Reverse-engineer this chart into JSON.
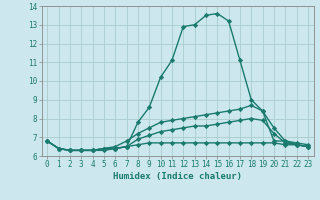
{
  "xlabel": "Humidex (Indice chaleur)",
  "background_color": "#cce8ee",
  "grid_color": "#aacccc",
  "line_color": "#1a7a6e",
  "xlim": [
    -0.5,
    23.5
  ],
  "ylim": [
    6,
    14
  ],
  "xticks": [
    0,
    1,
    2,
    3,
    4,
    5,
    6,
    7,
    8,
    9,
    10,
    11,
    12,
    13,
    14,
    15,
    16,
    17,
    18,
    19,
    20,
    21,
    22,
    23
  ],
  "yticks": [
    6,
    7,
    8,
    9,
    10,
    11,
    12,
    13,
    14
  ],
  "series": [
    [
      6.8,
      6.4,
      6.3,
      6.3,
      6.3,
      6.3,
      6.4,
      6.5,
      7.8,
      8.6,
      10.2,
      11.1,
      12.9,
      13.0,
      13.5,
      13.6,
      13.2,
      11.1,
      9.0,
      8.4,
      6.8,
      6.8,
      6.6,
      6.5
    ],
    [
      6.8,
      6.4,
      6.3,
      6.3,
      6.3,
      6.4,
      6.5,
      6.8,
      7.2,
      7.5,
      7.8,
      7.9,
      8.0,
      8.1,
      8.2,
      8.3,
      8.4,
      8.5,
      8.7,
      8.4,
      7.5,
      6.8,
      6.7,
      6.6
    ],
    [
      6.8,
      6.4,
      6.3,
      6.3,
      6.3,
      6.4,
      6.4,
      6.5,
      6.9,
      7.1,
      7.3,
      7.4,
      7.5,
      7.6,
      7.6,
      7.7,
      7.8,
      7.9,
      8.0,
      7.9,
      7.2,
      6.7,
      6.6,
      6.5
    ],
    [
      6.8,
      6.4,
      6.3,
      6.3,
      6.3,
      6.4,
      6.4,
      6.5,
      6.6,
      6.7,
      6.7,
      6.7,
      6.7,
      6.7,
      6.7,
      6.7,
      6.7,
      6.7,
      6.7,
      6.7,
      6.7,
      6.6,
      6.6,
      6.5
    ]
  ],
  "marker": "D",
  "marker_size": 2.2,
  "line_width": 1.0,
  "tick_fontsize": 5.5,
  "xlabel_fontsize": 6.5
}
